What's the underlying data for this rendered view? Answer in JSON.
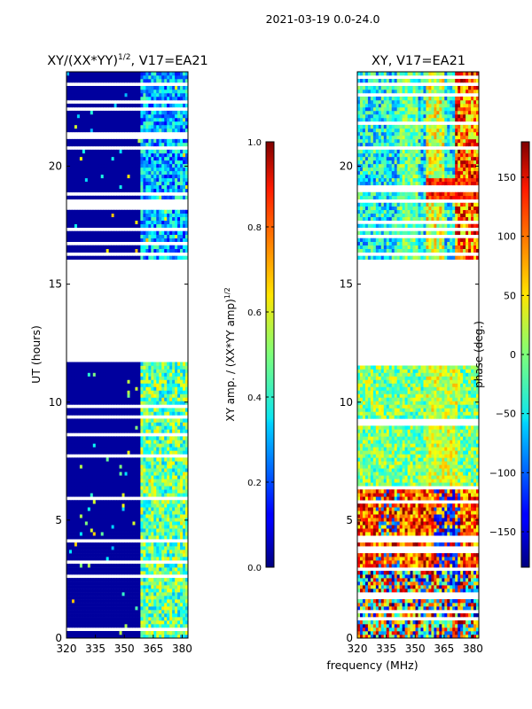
{
  "suptitle": "2021-03-19 0.0-24.0",
  "shared_xlabel": "frequency (MHz)",
  "chart_data": [
    {
      "type": "heatmap",
      "title": "XY/(XX*YY)^1/2, V17=EA21",
      "title_main": "XY/(XX*YY)",
      "title_exp": "1/2",
      "title_tail": ", V17=EA21",
      "xlabel": "",
      "ylabel": "UT (hours)",
      "xlim": [
        320,
        383
      ],
      "ylim": [
        0,
        24
      ],
      "xticks": [
        320,
        335,
        350,
        365,
        380
      ],
      "yticks": [
        0,
        5,
        10,
        15,
        20
      ],
      "data_gap_hours": [
        11.75,
        16.05
      ],
      "colorbar": {
        "label": "XY amp. / (XX*YY amp)^1/2",
        "label_main": "XY amp. / (XX*YY amp)",
        "label_exp": "1/2",
        "range": [
          0.0,
          1.0
        ],
        "ticks": [
          0.0,
          0.2,
          0.4,
          0.6,
          0.8,
          1.0
        ],
        "tick_labels": [
          "0.0",
          "0.2",
          "0.4",
          "0.6",
          "0.8",
          "1.0"
        ],
        "colormap": "jet"
      }
    },
    {
      "type": "heatmap",
      "title": "XY, V17=EA21",
      "xlabel": "frequency (MHz)",
      "ylabel": "",
      "xlim": [
        320,
        383
      ],
      "ylim": [
        0,
        24
      ],
      "xticks": [
        320,
        335,
        350,
        365,
        380
      ],
      "yticks": [
        0,
        5,
        10,
        15,
        20
      ],
      "data_gap_hours": [
        11.75,
        16.05
      ],
      "colorbar": {
        "label": "phase (deg.)",
        "range": [
          -180,
          180
        ],
        "ticks": [
          -150,
          -100,
          -50,
          0,
          50,
          100,
          150
        ],
        "tick_labels": [
          "−150",
          "−100",
          "−50",
          "0",
          "50",
          "100",
          "150"
        ],
        "colormap": "jet"
      }
    }
  ]
}
